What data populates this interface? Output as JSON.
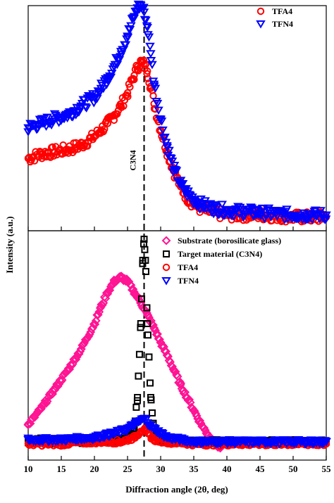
{
  "chart_data": [
    {
      "panel": "top",
      "type": "scatter",
      "xlim": [
        10,
        55
      ],
      "xlabel": "Diffraction angle (2θ, deg)",
      "ylabel": "Intensity (a.u.)",
      "legend_position": "top-right",
      "reference_line": {
        "x": 27.5,
        "label": "C3N4",
        "style": "dashed"
      },
      "series": [
        {
          "name": "TFA4",
          "marker": "circle-open",
          "color": "#ff0000",
          "x": [
            10,
            12,
            14,
            16,
            18,
            20,
            21,
            22,
            23,
            24,
            25,
            26,
            26.5,
            27,
            27.5,
            28,
            28.5,
            29,
            30,
            31,
            32,
            33,
            34,
            35,
            36,
            38,
            40,
            45,
            50,
            55
          ],
          "y": [
            0.3,
            0.32,
            0.33,
            0.34,
            0.36,
            0.4,
            0.43,
            0.46,
            0.5,
            0.54,
            0.6,
            0.68,
            0.72,
            0.74,
            0.73,
            0.7,
            0.63,
            0.55,
            0.43,
            0.33,
            0.24,
            0.17,
            0.12,
            0.09,
            0.07,
            0.05,
            0.04,
            0.04,
            0.03,
            0.03
          ]
        },
        {
          "name": "TFN4",
          "marker": "triangle-down-open",
          "color": "#0000ff",
          "x": [
            10,
            12,
            14,
            16,
            18,
            20,
            21,
            22,
            23,
            24,
            25,
            26,
            26.5,
            27,
            27.5,
            28,
            28.5,
            29,
            30,
            31,
            32,
            33,
            34,
            35,
            36,
            38,
            40,
            45,
            50,
            55
          ],
          "y": [
            0.44,
            0.46,
            0.48,
            0.5,
            0.54,
            0.58,
            0.62,
            0.67,
            0.72,
            0.79,
            0.86,
            0.95,
            0.99,
            1.0,
            0.97,
            0.9,
            0.78,
            0.64,
            0.48,
            0.35,
            0.25,
            0.18,
            0.14,
            0.11,
            0.09,
            0.07,
            0.06,
            0.05,
            0.04,
            0.04
          ]
        }
      ]
    },
    {
      "panel": "bottom",
      "type": "scatter",
      "xlim": [
        10,
        55
      ],
      "xticks": [
        10,
        15,
        20,
        25,
        30,
        35,
        40,
        45,
        50,
        55
      ],
      "xlabel": "Diffraction angle (2θ, deg)",
      "ylabel": "Intensity (a.u.)",
      "legend_position": "top-right",
      "series": [
        {
          "name": "Substrate (borosilicate glass)",
          "marker": "diamond-open",
          "color": "#ff1493",
          "x": [
            10,
            12,
            14,
            16,
            18,
            20,
            21,
            22,
            23,
            24,
            25,
            26,
            27,
            28,
            29,
            30,
            31,
            32,
            33,
            34,
            35,
            36,
            37,
            38,
            39
          ],
          "y": [
            0.12,
            0.2,
            0.29,
            0.38,
            0.48,
            0.6,
            0.68,
            0.75,
            0.8,
            0.82,
            0.8,
            0.75,
            0.7,
            0.64,
            0.58,
            0.51,
            0.45,
            0.38,
            0.31,
            0.25,
            0.19,
            0.13,
            0.08,
            0.04,
            0.01
          ]
        },
        {
          "name": "Target material (C3N4)",
          "marker": "square-open",
          "color": "#000000",
          "x": [
            10,
            12,
            14,
            16,
            18,
            20,
            22,
            24,
            25,
            26,
            26.5,
            27,
            27.3,
            27.5,
            27.7,
            28,
            28.5,
            29,
            30,
            32,
            35,
            40,
            45,
            50,
            55
          ],
          "y": [
            0.04,
            0.05,
            0.04,
            0.05,
            0.04,
            0.05,
            0.04,
            0.05,
            0.06,
            0.1,
            0.25,
            0.6,
            0.9,
            1.0,
            0.9,
            0.6,
            0.25,
            0.08,
            0.05,
            0.04,
            0.04,
            0.04,
            0.04,
            0.04,
            0.04
          ]
        },
        {
          "name": "TFA4",
          "marker": "circle-open",
          "color": "#ff0000",
          "x": [
            10,
            15,
            20,
            24,
            26,
            27,
            27.5,
            28,
            29,
            31,
            35,
            40,
            45,
            50,
            55
          ],
          "y": [
            0.03,
            0.03,
            0.04,
            0.04,
            0.06,
            0.09,
            0.1,
            0.08,
            0.05,
            0.04,
            0.03,
            0.03,
            0.03,
            0.03,
            0.03
          ]
        },
        {
          "name": "TFN4",
          "marker": "triangle-down-open",
          "color": "#0000ff",
          "x": [
            10,
            15,
            20,
            23,
            25,
            26,
            27,
            27.5,
            28,
            29,
            30,
            31,
            33,
            35,
            40,
            45,
            50,
            55
          ],
          "y": [
            0.05,
            0.05,
            0.06,
            0.08,
            0.1,
            0.12,
            0.14,
            0.15,
            0.13,
            0.1,
            0.08,
            0.06,
            0.05,
            0.04,
            0.04,
            0.04,
            0.04,
            0.04
          ]
        }
      ]
    }
  ]
}
